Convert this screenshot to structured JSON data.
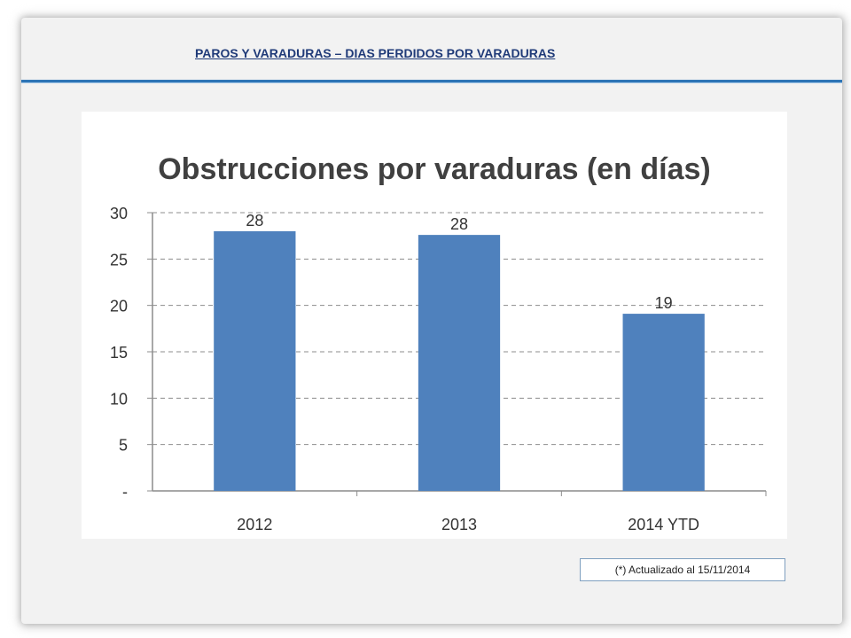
{
  "slide": {
    "header_title": "PAROS Y VARADURAS – DIAS PERDIDOS POR VARADURAS",
    "footnote": "(*) Actualizado al 15/11/2014"
  },
  "colors": {
    "bar": "#4f81bd",
    "header_rule": "#2e75b6",
    "header_text": "#1f3a78",
    "grid": "#8c8c8c"
  },
  "chart_data": {
    "type": "bar",
    "title": "Obstrucciones por varaduras (en días)",
    "categories": [
      "2012",
      "2013",
      "2014 YTD"
    ],
    "values": [
      28,
      27.6,
      19.1
    ],
    "data_labels": [
      "28",
      "28",
      "19"
    ],
    "y_tick_labels": [
      "-",
      "5",
      "10",
      "15",
      "20",
      "25",
      "30"
    ],
    "y_ticks": [
      0,
      5,
      10,
      15,
      20,
      25,
      30
    ],
    "ylim": [
      0,
      30
    ],
    "xlabel": "",
    "ylabel": "",
    "grid": true,
    "legend": false
  }
}
